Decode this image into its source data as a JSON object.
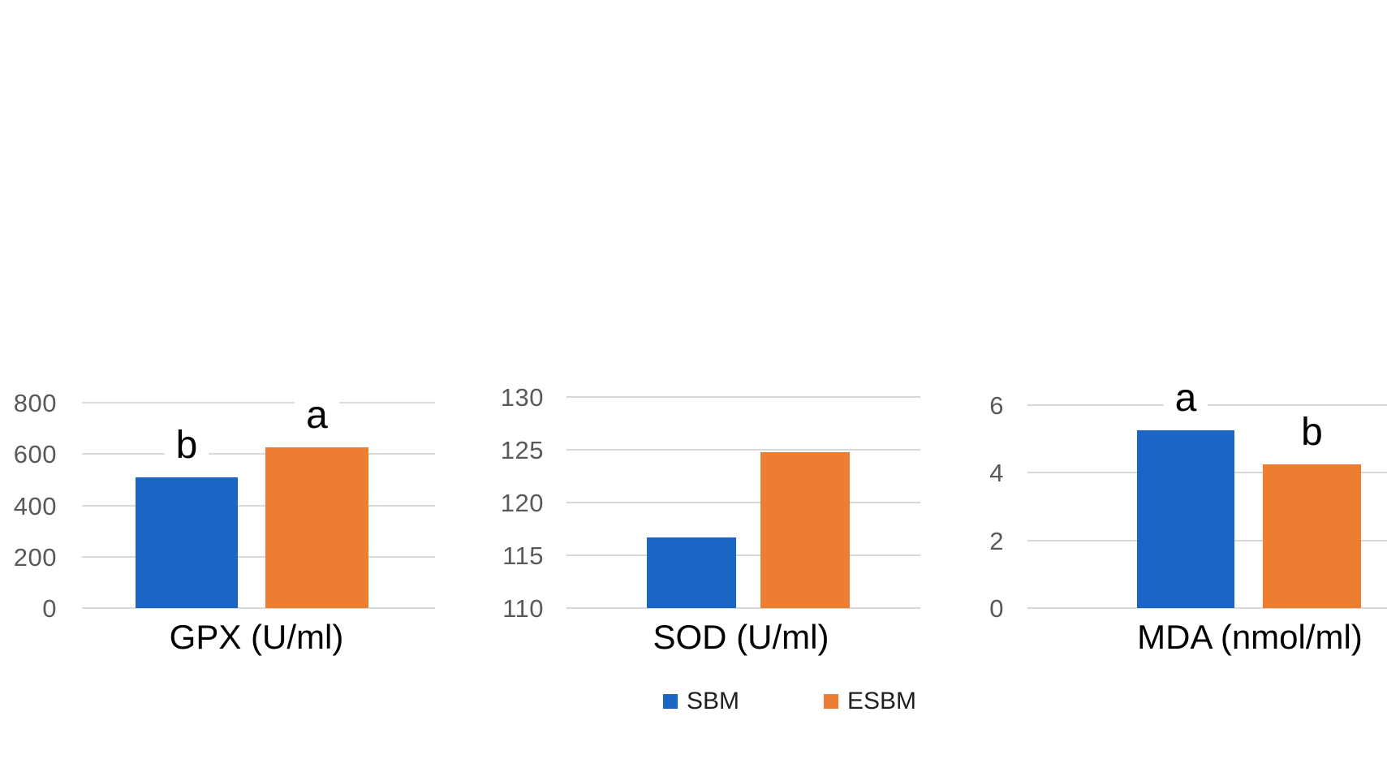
{
  "figure": {
    "background": "#ffffff",
    "description": "Three bar charts comparing SBM and ESBM groups for GPX, SOD and MDA with significance letters"
  },
  "colors": {
    "series_sbm": "#1B66C4",
    "series_esbm": "#ED7D31",
    "gridline": "#D9D9D9",
    "tick_label": "#595959",
    "axis_title": "#000000",
    "sig_letter": "#000000"
  },
  "legend": {
    "position": "bottom-center",
    "items": [
      {
        "label": "SBM",
        "color": "#1B66C4"
      },
      {
        "label": "ESBM",
        "color": "#ED7D31"
      }
    ]
  },
  "chart_data": [
    {
      "type": "bar",
      "title": "GPX (U/ml)",
      "xlabel": "GPX (U/ml)",
      "ylabel": "",
      "categories": [
        "SBM",
        "ESBM"
      ],
      "ylim": [
        0,
        800
      ],
      "yticks": [
        0,
        200,
        400,
        600,
        800
      ],
      "grid": true,
      "series": [
        {
          "name": "SBM",
          "value": 510,
          "sig_letter": "b"
        },
        {
          "name": "ESBM",
          "value": 625,
          "sig_letter": "a"
        }
      ]
    },
    {
      "type": "bar",
      "title": "SOD (U/ml)",
      "xlabel": "SOD (U/ml)",
      "ylabel": "",
      "categories": [
        "SBM",
        "ESBM"
      ],
      "ylim": [
        110,
        130
      ],
      "yticks": [
        110,
        115,
        120,
        125,
        130
      ],
      "grid": true,
      "series": [
        {
          "name": "SBM",
          "value": 116.7,
          "sig_letter": ""
        },
        {
          "name": "ESBM",
          "value": 124.8,
          "sig_letter": ""
        }
      ]
    },
    {
      "type": "bar",
      "title": "MDA (nmol/ml)",
      "xlabel": "MDA (nmol/ml)",
      "ylabel": "",
      "categories": [
        "SBM",
        "ESBM"
      ],
      "ylim": [
        0,
        6
      ],
      "yticks": [
        0,
        2,
        4,
        6
      ],
      "grid": true,
      "series": [
        {
          "name": "SBM",
          "value": 5.25,
          "sig_letter": "a"
        },
        {
          "name": "ESBM",
          "value": 4.25,
          "sig_letter": "b"
        }
      ]
    }
  ]
}
